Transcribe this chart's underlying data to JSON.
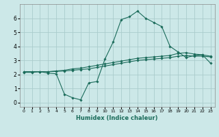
{
  "title": "",
  "xlabel": "Humidex (Indice chaleur)",
  "ylabel": "",
  "bg_color": "#cce8e8",
  "grid_color": "#aacccc",
  "line_color": "#1a6b5a",
  "xlim": [
    -0.5,
    23.5
  ],
  "ylim": [
    -0.3,
    7.0
  ],
  "xticks": [
    0,
    1,
    2,
    3,
    4,
    5,
    6,
    7,
    8,
    9,
    10,
    11,
    12,
    13,
    14,
    15,
    16,
    17,
    18,
    19,
    20,
    21,
    22,
    23
  ],
  "yticks": [
    0,
    1,
    2,
    3,
    4,
    5,
    6
  ],
  "line1_x": [
    0,
    1,
    2,
    3,
    4,
    5,
    6,
    7,
    8,
    9,
    10,
    11,
    12,
    13,
    14,
    15,
    16,
    17,
    18,
    19,
    20,
    21,
    22,
    23
  ],
  "line1_y": [
    2.2,
    2.2,
    2.2,
    2.1,
    2.05,
    0.6,
    0.35,
    0.2,
    1.4,
    1.5,
    3.1,
    4.3,
    5.9,
    6.1,
    6.5,
    6.0,
    5.7,
    5.4,
    4.0,
    3.6,
    3.2,
    3.35,
    3.4,
    2.8
  ],
  "line2_x": [
    0,
    1,
    2,
    3,
    4,
    5,
    6,
    7,
    8,
    9,
    10,
    11,
    12,
    13,
    14,
    15,
    16,
    17,
    18,
    19,
    20,
    21,
    22,
    23
  ],
  "line2_y": [
    2.2,
    2.2,
    2.2,
    2.2,
    2.25,
    2.3,
    2.4,
    2.45,
    2.55,
    2.65,
    2.75,
    2.85,
    2.95,
    3.05,
    3.15,
    3.2,
    3.25,
    3.3,
    3.35,
    3.5,
    3.55,
    3.45,
    3.4,
    3.3
  ],
  "line3_x": [
    0,
    1,
    2,
    3,
    4,
    5,
    6,
    7,
    8,
    9,
    10,
    11,
    12,
    13,
    14,
    15,
    16,
    17,
    18,
    19,
    20,
    21,
    22,
    23
  ],
  "line3_y": [
    2.15,
    2.15,
    2.2,
    2.2,
    2.22,
    2.25,
    2.3,
    2.35,
    2.4,
    2.5,
    2.6,
    2.7,
    2.8,
    2.9,
    3.0,
    3.05,
    3.1,
    3.15,
    3.2,
    3.3,
    3.35,
    3.3,
    3.3,
    3.25
  ]
}
